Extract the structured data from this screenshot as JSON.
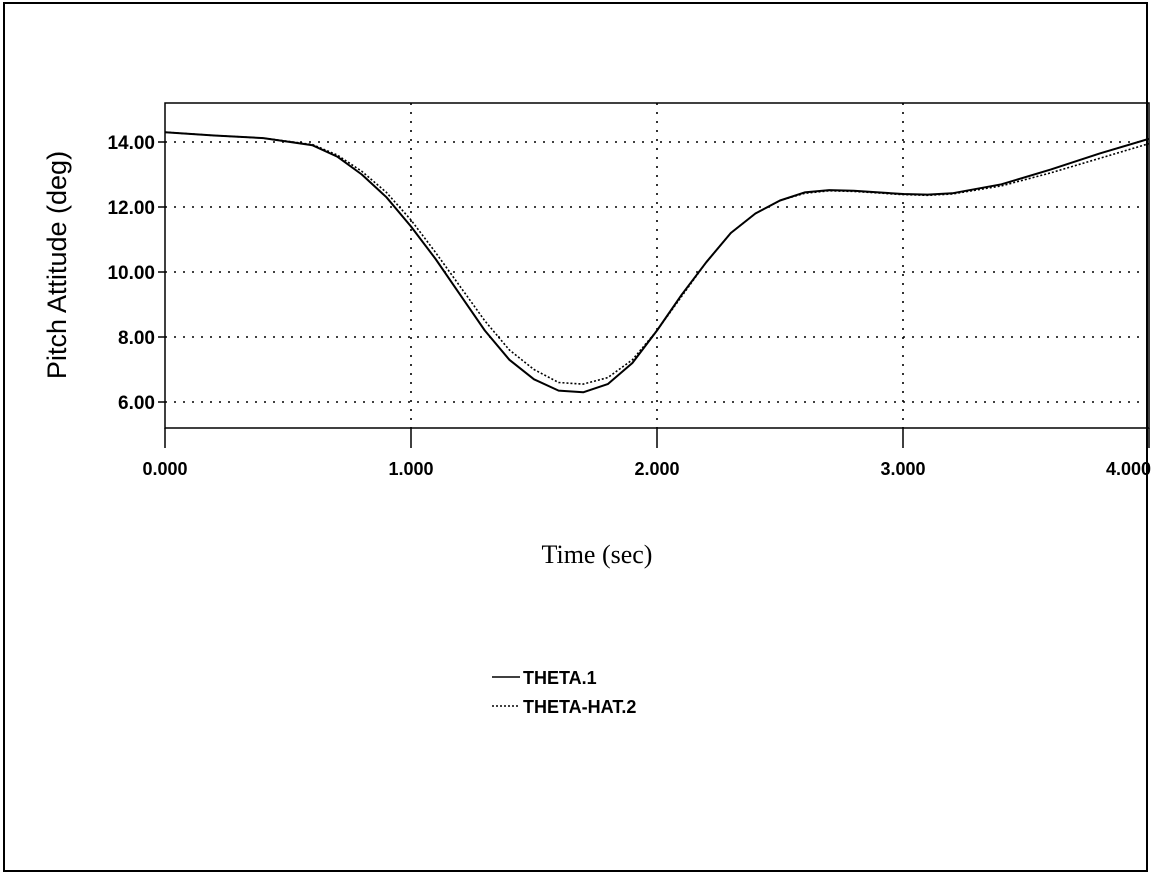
{
  "chart_data": {
    "type": "line",
    "xlabel": "Time (sec)",
    "ylabel": "Pitch Attitude (deg)",
    "xlim": [
      0,
      4
    ],
    "ylim": [
      5.2,
      15.2
    ],
    "x_ticks": [
      "0.000",
      "1.000",
      "2.000",
      "3.000",
      "4.000"
    ],
    "y_ticks": [
      "6.00",
      "8.00",
      "10.00",
      "12.00",
      "14.00"
    ],
    "grid": true,
    "legend_position": "bottom-center",
    "series": [
      {
        "name": "THETA.1",
        "style": "solid",
        "x": [
          0,
          0.2,
          0.4,
          0.6,
          0.7,
          0.8,
          0.9,
          1.0,
          1.1,
          1.2,
          1.3,
          1.4,
          1.5,
          1.6,
          1.7,
          1.8,
          1.9,
          2.0,
          2.1,
          2.2,
          2.3,
          2.4,
          2.5,
          2.6,
          2.7,
          2.8,
          2.9,
          3.0,
          3.1,
          3.2,
          3.4,
          3.6,
          3.8,
          4.0
        ],
        "y": [
          14.3,
          14.2,
          14.12,
          13.9,
          13.55,
          13.0,
          12.3,
          11.4,
          10.4,
          9.3,
          8.2,
          7.3,
          6.7,
          6.35,
          6.3,
          6.55,
          7.2,
          8.2,
          9.3,
          10.3,
          11.2,
          11.8,
          12.2,
          12.45,
          12.52,
          12.5,
          12.45,
          12.4,
          12.38,
          12.42,
          12.7,
          13.15,
          13.65,
          14.1
        ]
      },
      {
        "name": "THETA-HAT.2",
        "style": "dotted",
        "x": [
          0,
          0.2,
          0.4,
          0.6,
          0.7,
          0.8,
          0.9,
          1.0,
          1.1,
          1.2,
          1.3,
          1.4,
          1.5,
          1.6,
          1.7,
          1.8,
          1.9,
          2.0,
          2.1,
          2.2,
          2.3,
          2.4,
          2.5,
          2.6,
          2.7,
          2.8,
          2.9,
          3.0,
          3.1,
          3.2,
          3.4,
          3.6,
          3.8,
          4.0
        ],
        "y": [
          14.3,
          14.2,
          14.12,
          13.92,
          13.6,
          13.1,
          12.45,
          11.6,
          10.6,
          9.55,
          8.5,
          7.6,
          7.0,
          6.6,
          6.55,
          6.75,
          7.3,
          8.2,
          9.25,
          10.3,
          11.2,
          11.8,
          12.2,
          12.42,
          12.5,
          12.48,
          12.43,
          12.38,
          12.36,
          12.4,
          12.65,
          13.05,
          13.5,
          13.95
        ]
      }
    ]
  }
}
